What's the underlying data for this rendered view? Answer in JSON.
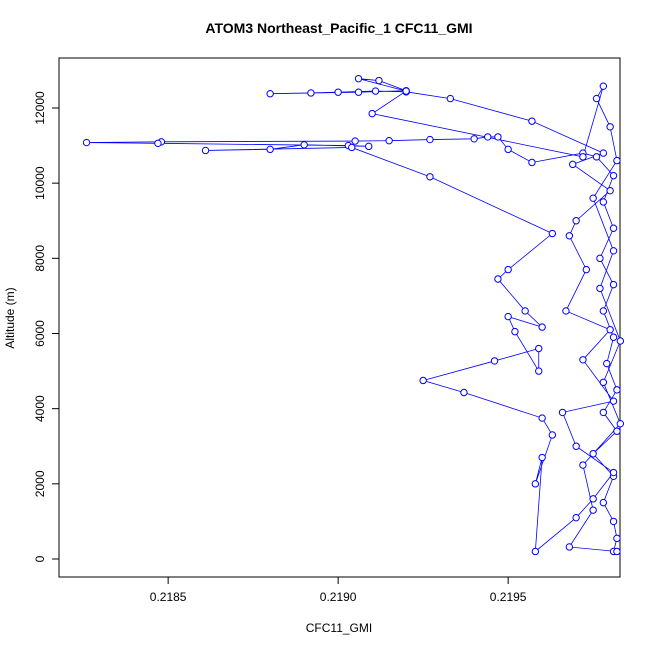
{
  "chart_data": {
    "type": "line",
    "title": "ATOM3 Northeast_Pacific_1 CFC11_GMI",
    "x_label": "CFC11_GMI",
    "y_label": "Altitude (m)",
    "markers": true,
    "grid": false,
    "xlim": [
      0.218179,
      0.219829
    ],
    "ylim": [
      -479,
      13330
    ],
    "xticks": [
      0.2185,
      {
        "value": 0.219,
        "label": "0.2190"
      },
      0.2195
    ],
    "yticks": [
      0,
      2000,
      4000,
      6000,
      8000,
      10000,
      12000
    ],
    "series": [
      {
        "name": "CFC11_GMI",
        "color": "#0000ff",
        "x": [
          0.21981,
          0.21982,
          0.21981,
          0.21978,
          0.21981,
          0.21975,
          0.21982,
          0.21978,
          0.21982,
          0.21979,
          0.21981,
          0.21978,
          0.21981,
          0.21977,
          0.21981,
          0.21978,
          0.21981,
          0.21976,
          0.21972,
          0.21957,
          0.2195,
          0.21947,
          0.21944,
          0.2194,
          0.21927,
          0.21915,
          0.21905,
          0.21848,
          0.21826,
          0.21847,
          0.21903,
          0.21909,
          0.2189,
          0.2188,
          0.21861,
          0.21904,
          0.21927,
          0.21963,
          0.2195,
          0.21947,
          0.21955,
          0.2196,
          0.2195,
          0.21952,
          0.21959,
          0.21959,
          0.21946,
          0.21925,
          0.21937,
          0.2196,
          0.21963,
          0.21958,
          0.2196,
          0.21958,
          0.2197,
          0.21975,
          0.21981,
          0.2197,
          0.21966,
          0.21981,
          0.21972,
          0.2198,
          0.21967,
          0.21973,
          0.21968,
          0.2197,
          0.2198,
          0.21969,
          0.21978,
          0.21957,
          0.21933,
          0.2192,
          0.21911,
          0.219,
          0.21892,
          0.2188,
          0.21906,
          0.2192,
          0.21912,
          0.21906,
          0.2192,
          0.2191,
          0.21972,
          0.21978,
          0.21976,
          0.2198,
          0.21982,
          0.21975,
          0.21981,
          0.21977,
          0.21983,
          0.21978,
          0.21983,
          0.21972,
          0.21975,
          0.21968,
          0.21982
        ],
        "values": [
          200,
          550,
          1000,
          1500,
          2200,
          2800,
          3400,
          3900,
          4500,
          5200,
          5900,
          6600,
          7300,
          8000,
          8800,
          9500,
          10200,
          10700,
          10800,
          10550,
          10900,
          11230,
          11230,
          11180,
          11160,
          11130,
          11120,
          11100,
          11080,
          11060,
          11000,
          10980,
          11020,
          10900,
          10870,
          10950,
          10170,
          8660,
          7700,
          7450,
          6600,
          6170,
          6450,
          6050,
          5000,
          5600,
          5270,
          4750,
          4430,
          3750,
          3300,
          2000,
          2700,
          200,
          1100,
          1600,
          2300,
          3000,
          3900,
          4200,
          5300,
          6100,
          6600,
          7700,
          8600,
          9000,
          9800,
          10500,
          10800,
          11650,
          12250,
          12430,
          12450,
          12420,
          12400,
          12380,
          12420,
          12460,
          12730,
          12780,
          12450,
          11850,
          10700,
          12580,
          12250,
          11500,
          10600,
          9600,
          8200,
          7200,
          5800,
          4700,
          3600,
          2500,
          1300,
          320,
          200
        ]
      }
    ]
  }
}
